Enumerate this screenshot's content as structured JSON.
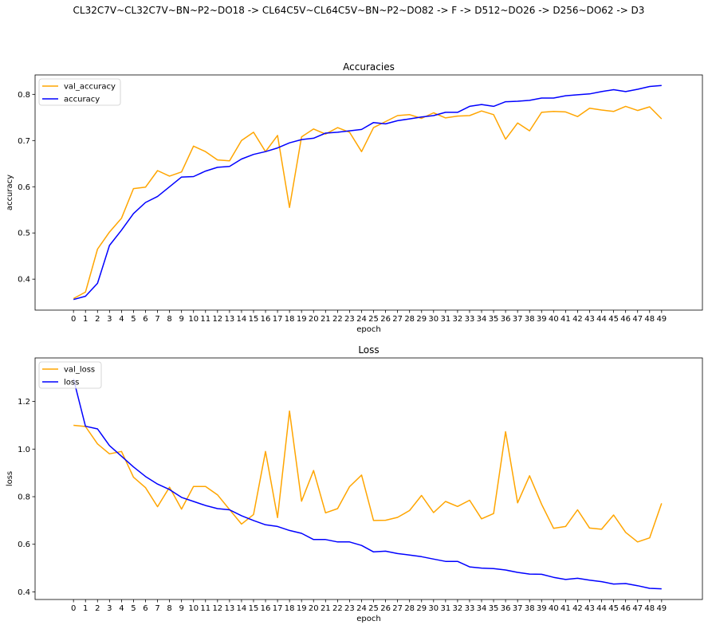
{
  "figure": {
    "suptitle": "CL32C7V~CL32C7V~BN~P2~DO18 -> CL64C5V~CL64C5V~BN~P2~DO82 -> F -> D512~DO26 -> D256~DO62 -> D3"
  },
  "chart_data": [
    {
      "type": "line",
      "title": "Accuracies",
      "xlabel": "epoch",
      "ylabel": "accuracy",
      "x": [
        0,
        1,
        2,
        3,
        4,
        5,
        6,
        7,
        8,
        9,
        10,
        11,
        12,
        13,
        14,
        15,
        16,
        17,
        18,
        19,
        20,
        21,
        22,
        23,
        24,
        25,
        26,
        27,
        28,
        29,
        30,
        31,
        32,
        33,
        34,
        35,
        36,
        37,
        38,
        39,
        40,
        41,
        42,
        43,
        44,
        45,
        46,
        47,
        48,
        49
      ],
      "xlim": [
        -3.2,
        52.4
      ],
      "ylim": [
        0.333,
        0.842
      ],
      "yticks": [
        0.4,
        0.5,
        0.6,
        0.7,
        0.8
      ],
      "ytick_labels": [
        "0.4",
        "0.5",
        "0.6",
        "0.7",
        "0.8"
      ],
      "legend": "upper-left",
      "series": [
        {
          "name": "val_accuracy",
          "color": "#ffa500",
          "values": [
            0.358,
            0.372,
            0.465,
            0.502,
            0.532,
            0.596,
            0.599,
            0.635,
            0.623,
            0.632,
            0.688,
            0.676,
            0.658,
            0.656,
            0.7,
            0.718,
            0.676,
            0.711,
            0.555,
            0.708,
            0.725,
            0.714,
            0.728,
            0.718,
            0.676,
            0.728,
            0.741,
            0.754,
            0.756,
            0.748,
            0.76,
            0.749,
            0.753,
            0.754,
            0.764,
            0.756,
            0.703,
            0.738,
            0.721,
            0.761,
            0.763,
            0.762,
            0.752,
            0.77,
            0.766,
            0.763,
            0.774,
            0.765,
            0.773,
            0.747
          ]
        },
        {
          "name": "accuracy",
          "color": "#0000ff",
          "values": [
            0.356,
            0.363,
            0.391,
            0.473,
            0.506,
            0.542,
            0.566,
            0.579,
            0.6,
            0.621,
            0.622,
            0.634,
            0.642,
            0.644,
            0.66,
            0.67,
            0.676,
            0.684,
            0.695,
            0.702,
            0.705,
            0.716,
            0.718,
            0.721,
            0.724,
            0.739,
            0.736,
            0.743,
            0.747,
            0.751,
            0.754,
            0.761,
            0.761,
            0.774,
            0.778,
            0.774,
            0.784,
            0.785,
            0.787,
            0.792,
            0.792,
            0.797,
            0.799,
            0.801,
            0.806,
            0.81,
            0.806,
            0.811,
            0.817,
            0.819
          ]
        }
      ]
    },
    {
      "type": "line",
      "title": "Loss",
      "xlabel": "epoch",
      "ylabel": "loss",
      "x": [
        0,
        1,
        2,
        3,
        4,
        5,
        6,
        7,
        8,
        9,
        10,
        11,
        12,
        13,
        14,
        15,
        16,
        17,
        18,
        19,
        20,
        21,
        22,
        23,
        24,
        25,
        26,
        27,
        28,
        29,
        30,
        31,
        32,
        33,
        34,
        35,
        36,
        37,
        38,
        39,
        40,
        41,
        42,
        43,
        44,
        45,
        46,
        47,
        48,
        49
      ],
      "xlim": [
        -3.2,
        52.4
      ],
      "ylim": [
        0.368,
        1.383
      ],
      "yticks": [
        0.4,
        0.6,
        0.8,
        1.0,
        1.2
      ],
      "ytick_labels": [
        "0.4",
        "0.6",
        "0.8",
        "1.0",
        "1.2"
      ],
      "legend": "upper-left",
      "series": [
        {
          "name": "val_loss",
          "color": "#ffa500",
          "values": [
            1.1,
            1.095,
            1.022,
            0.98,
            0.99,
            0.882,
            0.838,
            0.758,
            0.84,
            0.748,
            0.843,
            0.843,
            0.808,
            0.746,
            0.685,
            0.725,
            0.99,
            0.712,
            1.16,
            0.781,
            0.91,
            0.732,
            0.75,
            0.842,
            0.891,
            0.7,
            0.701,
            0.713,
            0.742,
            0.805,
            0.733,
            0.78,
            0.759,
            0.785,
            0.707,
            0.729,
            1.073,
            0.774,
            0.888,
            0.768,
            0.667,
            0.675,
            0.745,
            0.668,
            0.663,
            0.723,
            0.65,
            0.61,
            0.627,
            0.772
          ]
        },
        {
          "name": "loss",
          "color": "#0000ff",
          "values": [
            1.295,
            1.096,
            1.085,
            1.015,
            0.97,
            0.925,
            0.885,
            0.853,
            0.83,
            0.797,
            0.78,
            0.763,
            0.75,
            0.745,
            0.72,
            0.7,
            0.682,
            0.675,
            0.658,
            0.646,
            0.62,
            0.62,
            0.61,
            0.61,
            0.595,
            0.568,
            0.571,
            0.561,
            0.555,
            0.548,
            0.538,
            0.528,
            0.528,
            0.505,
            0.5,
            0.498,
            0.492,
            0.482,
            0.475,
            0.474,
            0.461,
            0.452,
            0.457,
            0.449,
            0.443,
            0.433,
            0.435,
            0.426,
            0.415,
            0.413
          ]
        }
      ]
    }
  ]
}
